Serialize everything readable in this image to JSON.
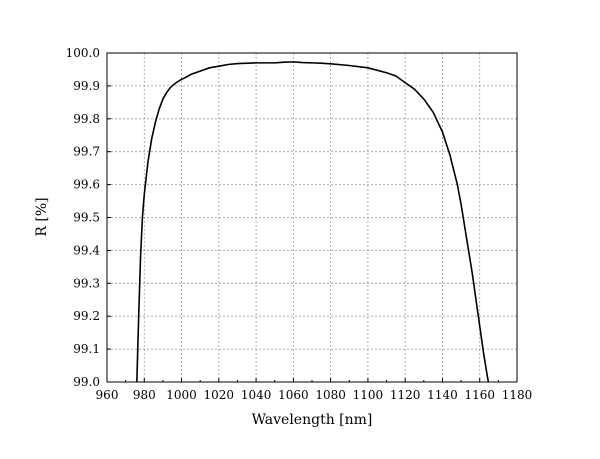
{
  "chart_data": {
    "type": "line",
    "title": "",
    "xlabel": "Wavelength [nm]",
    "ylabel": "R [%]",
    "xlim": [
      960,
      1180
    ],
    "ylim": [
      99.0,
      100.0
    ],
    "x_ticks": [
      "960",
      "980",
      "1000",
      "1020",
      "1040",
      "1060",
      "1080",
      "1100",
      "1120",
      "1140",
      "1160",
      "1180"
    ],
    "y_ticks": [
      "99.0",
      "99.1",
      "99.2",
      "99.3",
      "99.4",
      "99.5",
      "99.6",
      "99.7",
      "99.8",
      "99.9",
      "100.0"
    ],
    "grid": true,
    "series": [
      {
        "x": [
          976,
          977,
          978,
          979,
          980,
          982,
          984,
          986,
          988,
          990,
          992,
          994,
          996,
          998,
          1000,
          1002,
          1005,
          1010,
          1015,
          1020,
          1025,
          1030,
          1040,
          1050,
          1055,
          1060,
          1065,
          1070,
          1075,
          1080,
          1090,
          1100,
          1110,
          1115,
          1120,
          1125,
          1130,
          1135,
          1140,
          1144,
          1148,
          1150,
          1152,
          1154,
          1156,
          1158,
          1160,
          1162,
          1164,
          1166,
          1168
        ],
        "y": [
          99.0,
          99.2,
          99.38,
          99.5,
          99.57,
          99.67,
          99.74,
          99.79,
          99.83,
          99.86,
          99.88,
          99.895,
          99.905,
          99.913,
          99.92,
          99.925,
          99.935,
          99.945,
          99.955,
          99.96,
          99.965,
          99.968,
          99.97,
          99.97,
          99.972,
          99.973,
          99.971,
          99.97,
          99.969,
          99.967,
          99.962,
          99.955,
          99.94,
          99.93,
          99.91,
          99.89,
          99.86,
          99.82,
          99.76,
          99.69,
          99.6,
          99.54,
          99.47,
          99.4,
          99.33,
          99.25,
          99.17,
          99.09,
          99.02,
          98.96,
          98.92
        ]
      }
    ]
  }
}
